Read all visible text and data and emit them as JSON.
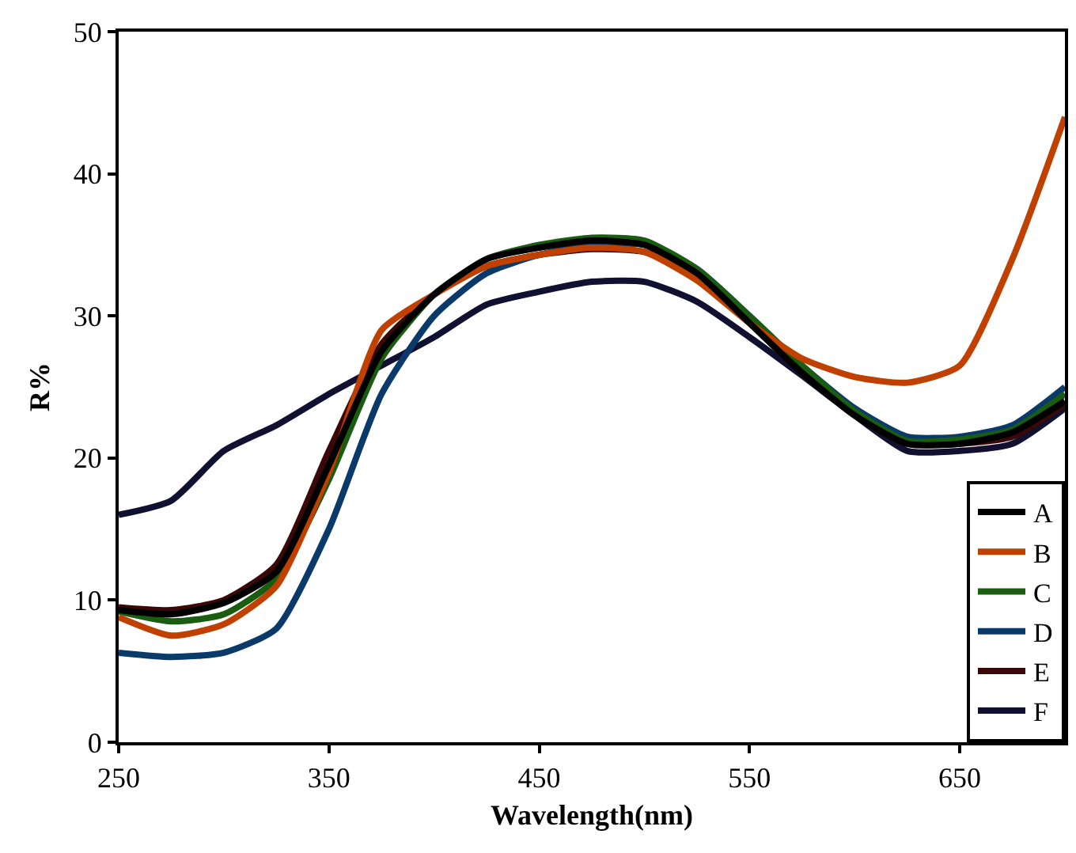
{
  "chart_data": {
    "type": "line",
    "xlabel": "Wavelength(nm)",
    "ylabel": "R%",
    "x": [
      250,
      275,
      300,
      325,
      350,
      375,
      400,
      425,
      450,
      475,
      500,
      525,
      550,
      575,
      600,
      625,
      650,
      675,
      700
    ],
    "series": [
      {
        "name": "A",
        "color": "#000000",
        "values": [
          9.3,
          9,
          9.8,
          12,
          19.5,
          27.5,
          31.5,
          34,
          34.8,
          35.3,
          35,
          33,
          29.5,
          26,
          23,
          21,
          21,
          21.8,
          24
        ]
      },
      {
        "name": "B",
        "color": "#c04000",
        "values": [
          8.8,
          7.5,
          8.3,
          11,
          19,
          29,
          31.5,
          33.5,
          34.3,
          34.8,
          34.5,
          32.5,
          29.5,
          27,
          25.7,
          25.3,
          26.5,
          34,
          44
        ]
      },
      {
        "name": "C",
        "color": "#1a5c10",
        "values": [
          9.2,
          8.5,
          9,
          11.5,
          18.5,
          27,
          31.5,
          34,
          35,
          35.5,
          35.3,
          33.3,
          30,
          26.5,
          23.3,
          21.2,
          21.3,
          22,
          24.5
        ]
      },
      {
        "name": "D",
        "color": "#0a3a6a",
        "values": [
          6.3,
          6,
          6.3,
          8,
          15,
          24.5,
          30,
          33,
          34.3,
          35,
          35,
          33.3,
          30,
          26.5,
          23.5,
          21.5,
          21.5,
          22.3,
          25
        ]
      },
      {
        "name": "E",
        "color": "#3a0808",
        "values": [
          9.5,
          9.3,
          10,
          12.5,
          20.5,
          28,
          31.5,
          33.5,
          34.3,
          34.7,
          34.5,
          32.8,
          29.5,
          26,
          23,
          21,
          21,
          21.5,
          23.8
        ]
      },
      {
        "name": "F",
        "color": "#101030",
        "values": [
          16,
          17,
          20.5,
          22.3,
          24.5,
          26.5,
          28.5,
          30.8,
          31.7,
          32.4,
          32.4,
          31,
          28.5,
          25.8,
          23,
          20.5,
          20.5,
          21,
          23.5
        ]
      }
    ],
    "xlim": [
      250,
      700
    ],
    "xticks": [
      250,
      350,
      450,
      550,
      650
    ],
    "ylim": [
      0,
      50
    ],
    "yticks": [
      0,
      10,
      20,
      30,
      40,
      50
    ],
    "legend": "bottom right",
    "line_style": "solid",
    "marker": "none"
  }
}
